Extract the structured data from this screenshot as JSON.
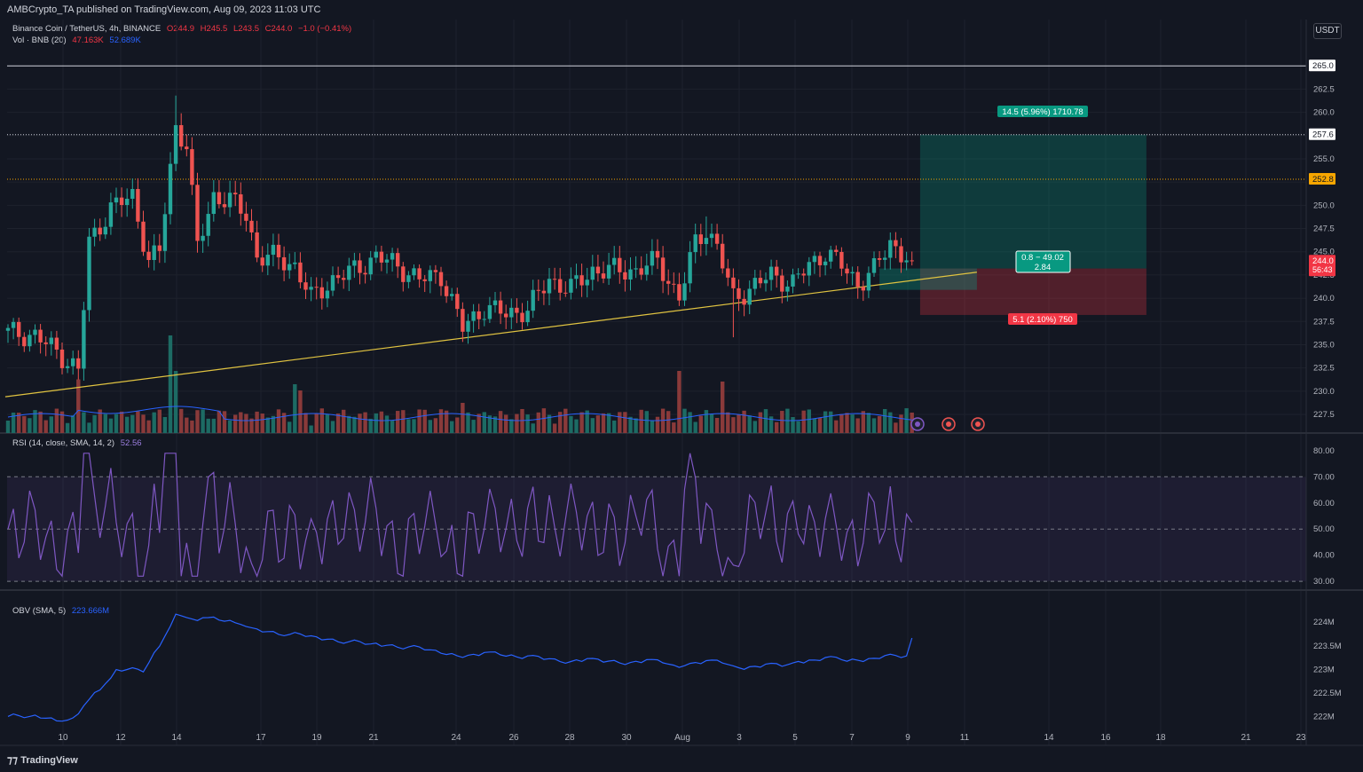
{
  "header": {
    "published": "AMBCrypto_TA published on TradingView.com, Aug 09, 2023 11:03 UTC"
  },
  "legend": {
    "symbol": "Binance Coin / TetherUS, 4h, BINANCE",
    "o": "O244.9",
    "h": "H245.5",
    "l": "L243.5",
    "c": "C244.0",
    "chg": "−1.0 (−0.41%)",
    "vol_label": "Vol · BNB (20)",
    "vol_val": "47.163K",
    "vol_ma": "52.689K",
    "rsi_label": "RSI (14, close, SMA, 14, 2)",
    "rsi_val": "52.56",
    "obv_label": "OBV (SMA, 5)",
    "obv_val": "223.666M"
  },
  "unit": "USDT",
  "footer": {
    "brand": "TradingView"
  },
  "colors": {
    "up": "#26a69a",
    "down": "#ef5350",
    "trend": "#e0c341",
    "rsi": "#7e57c2",
    "obv": "#2962ff",
    "target": "#089981",
    "stop": "#f23645",
    "level": "#f7a600"
  },
  "chart_data": {
    "type": "candlestick",
    "symbol": "Binance Coin / TetherUS",
    "interval": "4h",
    "ylim": [
      225.5,
      267.5
    ],
    "yticks": [
      227.5,
      230.0,
      232.5,
      235.0,
      237.5,
      240.0,
      242.5,
      245.0,
      247.5,
      250.0,
      252.5,
      255.0,
      257.5,
      260.0,
      262.5
    ],
    "xticks": [
      "10",
      "12",
      "14",
      "17",
      "19",
      "21",
      "24",
      "26",
      "28",
      "30",
      "Aug",
      "3",
      "5",
      "7",
      "9",
      "11",
      "14",
      "16",
      "18",
      "21",
      "23"
    ],
    "price_labels": {
      "p265": "265.0",
      "p257": "257.6",
      "p252": "252.8",
      "last": "244.0",
      "countdown": "56:43"
    },
    "last_price": 244.0,
    "levels": [
      {
        "price": 265.0,
        "style": "solid",
        "color": "#d1d4dc"
      },
      {
        "price": 257.6,
        "style": "dotted",
        "color": "#d1d4dc"
      },
      {
        "price": 252.8,
        "style": "dotted",
        "color": "#f7a600"
      }
    ],
    "trendline": {
      "from": [
        -0.5,
        229.4
      ],
      "to": [
        179,
        242.8
      ]
    },
    "position": {
      "entry": 243.2,
      "target": 257.6,
      "stop": 238.2,
      "bar_start": 169,
      "bar_end": 209,
      "target_label": "14.5 (5.96%) 1710.78",
      "stop_label": "5.1 (2.10%) 750",
      "center_line1": "0.8 − 49.02",
      "center_line2": "2.84"
    },
    "price_anchors": [
      [
        0,
        236.3
      ],
      [
        5,
        236.0
      ],
      [
        10,
        233.8
      ],
      [
        13,
        232.2
      ],
      [
        15,
        246.0
      ],
      [
        19,
        249.7
      ],
      [
        23,
        251.0
      ],
      [
        26,
        244.0
      ],
      [
        28,
        245.0
      ],
      [
        31,
        258.5
      ],
      [
        33,
        256.5
      ],
      [
        35,
        245.5
      ],
      [
        38,
        251.0
      ],
      [
        41,
        250.5
      ],
      [
        44,
        249.0
      ],
      [
        46,
        244.5
      ],
      [
        50,
        244.3
      ],
      [
        53,
        243.5
      ],
      [
        56,
        240.0
      ],
      [
        60,
        242.0
      ],
      [
        64,
        243.0
      ],
      [
        68,
        244.5
      ],
      [
        72,
        243.5
      ],
      [
        76,
        242.0
      ],
      [
        80,
        242.5
      ],
      [
        84,
        236.8
      ],
      [
        88,
        239.0
      ],
      [
        92,
        238.3
      ],
      [
        96,
        238.8
      ],
      [
        100,
        242.0
      ],
      [
        104,
        241.0
      ],
      [
        108,
        243.0
      ],
      [
        112,
        243.0
      ],
      [
        116,
        243.0
      ],
      [
        120,
        244.0
      ],
      [
        124,
        240.0
      ],
      [
        127,
        246.0
      ],
      [
        129,
        247.5
      ],
      [
        131,
        245.5
      ],
      [
        134,
        240.0
      ],
      [
        137,
        241.0
      ],
      [
        141,
        242.5
      ],
      [
        145,
        241.6
      ],
      [
        148,
        243.5
      ],
      [
        151,
        245.0
      ],
      [
        154,
        243.5
      ],
      [
        157,
        241.6
      ],
      [
        160,
        243.0
      ],
      [
        163,
        246.0
      ],
      [
        165,
        244.9
      ],
      [
        167,
        244.0
      ]
    ],
    "volume_bars": "proportional heights, peaks near bar 13, 30, 53, 124, 132",
    "rsi": {
      "ylim": [
        27,
        83
      ],
      "yticks": [
        30.0,
        40.0,
        50.0,
        60.0,
        70.0,
        80.0
      ],
      "band": [
        30,
        70
      ],
      "mid": 50,
      "last": 52.56
    },
    "obv": {
      "yticks": [
        "222M",
        "222.5M",
        "223M",
        "223.5M",
        "224M"
      ],
      "ylim": [
        221.8,
        224.4
      ],
      "last": 223.666
    }
  }
}
